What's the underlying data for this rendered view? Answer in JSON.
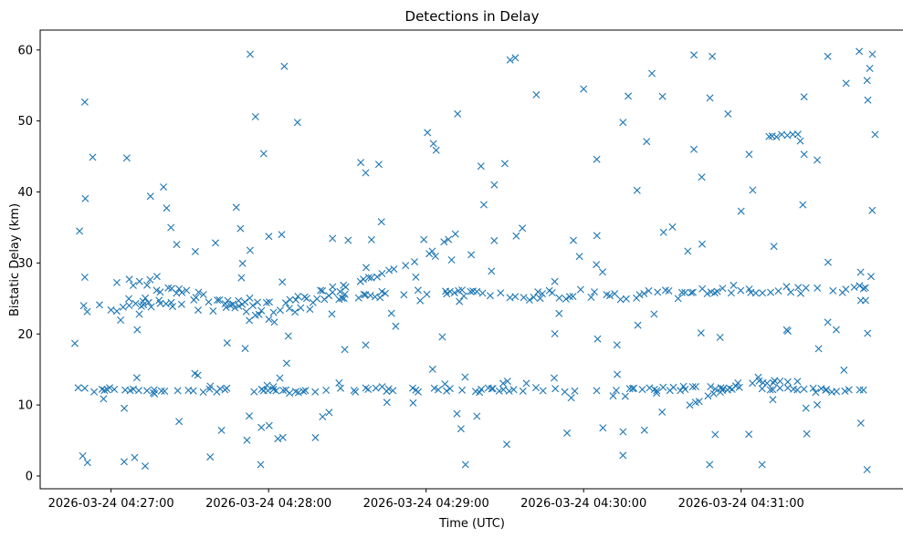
{
  "chart_data": {
    "type": "scatter",
    "title": "Detections in Delay",
    "xlabel": "Time (UTC)",
    "ylabel": "Bistatic Delay (km)",
    "x_start": "2026-03-24 04:26:46",
    "x_end": "2026-03-24 04:31:50",
    "xlim": [
      "2026-03-24 04:26:33",
      "2026-03-24 04:32:02"
    ],
    "ylim": [
      -1.8,
      62.8
    ],
    "x_ticks": [
      "2026-03-24 04:27:00",
      "2026-03-24 04:28:00",
      "2026-03-24 04:29:00",
      "2026-03-24 04:30:00",
      "2026-03-24 04:31:00"
    ],
    "y_ticks": [
      0,
      10,
      20,
      30,
      40,
      50,
      60
    ],
    "marker": "x",
    "color": "#1f77b4",
    "grid": false,
    "legend": "none",
    "band_tracks": [
      {
        "points": [
          [
            "2026-03-24 04:26:47",
            12.2
          ],
          [
            "2026-03-24 04:27:50",
            12.0
          ],
          [
            "2026-03-24 04:29:00",
            12.2
          ],
          [
            "2026-03-24 04:30:00",
            12.0
          ],
          [
            "2026-03-24 04:30:40",
            12.4
          ],
          [
            "2026-03-24 04:31:50",
            12.1
          ]
        ],
        "spread": 0.5
      },
      {
        "points": [
          [
            "2026-03-24 04:26:47",
            23.6
          ],
          [
            "2026-03-24 04:27:20",
            24.0
          ],
          [
            "2026-03-24 04:28:00",
            24.5
          ],
          [
            "2026-03-24 04:28:30",
            25.5
          ],
          [
            "2026-03-24 04:29:00",
            25.8
          ],
          [
            "2026-03-24 04:29:30",
            25.6
          ],
          [
            "2026-03-24 04:30:30",
            25.8
          ],
          [
            "2026-03-24 04:31:00",
            26.0
          ],
          [
            "2026-03-24 04:31:50",
            26.2
          ]
        ],
        "spread": 1.2
      },
      {
        "points": [
          [
            "2026-03-24 04:27:00",
            27.5
          ],
          [
            "2026-03-24 04:27:30",
            26.0
          ],
          [
            "2026-03-24 04:28:00",
            22.5
          ],
          [
            "2026-03-24 04:28:30",
            25.0
          ]
        ],
        "spread": 1.0
      },
      {
        "points": [
          [
            "2026-03-24 04:28:20",
            26.0
          ],
          [
            "2026-03-24 04:28:40",
            28.0
          ],
          [
            "2026-03-24 04:29:00",
            31.0
          ],
          [
            "2026-03-24 04:29:13",
            34.5
          ]
        ],
        "spread": 0.3
      },
      {
        "points": [
          [
            "2026-03-24 04:30:40",
            10.0
          ],
          [
            "2026-03-24 04:31:00",
            13.0
          ],
          [
            "2026-03-24 04:31:25",
            13.5
          ]
        ],
        "spread": 0.4
      },
      {
        "points": [
          [
            "2026-03-24 04:31:10",
            47.8
          ],
          [
            "2026-03-24 04:31:23",
            48.2
          ]
        ],
        "spread": 0.2
      }
    ],
    "notes_points": [
      [
        "2026-03-24 04:26:48",
        34.5
      ],
      [
        "2026-03-24 04:26:50",
        28.0
      ],
      [
        "2026-03-24 04:26:53",
        44.9
      ],
      [
        "2026-03-24 04:27:06",
        44.8
      ],
      [
        "2026-03-24 04:27:15",
        39.4
      ],
      [
        "2026-03-24 04:27:20",
        40.7
      ],
      [
        "2026-03-24 04:27:53",
        59.4
      ],
      [
        "2026-03-24 04:27:55",
        50.6
      ],
      [
        "2026-03-24 04:28:06",
        57.7
      ],
      [
        "2026-03-24 04:28:11",
        49.8
      ],
      [
        "2026-03-24 04:28:37",
        42.7
      ],
      [
        "2026-03-24 04:28:42",
        43.9
      ],
      [
        "2026-03-24 04:29:12",
        51.0
      ],
      [
        "2026-03-24 04:29:30",
        44.0
      ],
      [
        "2026-03-24 04:29:32",
        58.6
      ],
      [
        "2026-03-24 04:29:34",
        58.9
      ],
      [
        "2026-03-24 04:29:42",
        53.7
      ],
      [
        "2026-03-24 04:30:00",
        54.5
      ],
      [
        "2026-03-24 04:30:15",
        49.8
      ],
      [
        "2026-03-24 04:30:17",
        53.5
      ],
      [
        "2026-03-24 04:30:26",
        56.7
      ],
      [
        "2026-03-24 04:30:42",
        59.3
      ],
      [
        "2026-03-24 04:30:49",
        59.1
      ],
      [
        "2026-03-24 04:30:55",
        51.0
      ],
      [
        "2026-03-24 04:31:24",
        53.4
      ],
      [
        "2026-03-24 04:31:33",
        59.1
      ],
      [
        "2026-03-24 04:31:40",
        55.3
      ],
      [
        "2026-03-24 04:31:45",
        59.8
      ],
      [
        "2026-03-24 04:31:48",
        55.7
      ],
      [
        "2026-03-24 04:31:49",
        57.4
      ],
      [
        "2026-03-24 04:31:50",
        59.4
      ],
      [
        "2026-03-24 04:31:51",
        48.1
      ],
      [
        "2026-03-24 04:26:51",
        1.9
      ],
      [
        "2026-03-24 04:27:05",
        2.0
      ],
      [
        "2026-03-24 04:27:13",
        1.4
      ],
      [
        "2026-03-24 04:27:57",
        1.6
      ],
      [
        "2026-03-24 04:29:15",
        1.6
      ],
      [
        "2026-03-24 04:30:15",
        2.9
      ],
      [
        "2026-03-24 04:30:48",
        1.6
      ],
      [
        "2026-03-24 04:31:08",
        1.6
      ],
      [
        "2026-03-24 04:31:48",
        0.9
      ],
      [
        "2026-03-24 04:27:25",
        32.6
      ],
      [
        "2026-03-24 04:28:05",
        34.0
      ],
      [
        "2026-03-24 04:28:43",
        35.8
      ],
      [
        "2026-03-24 04:29:22",
        38.2
      ],
      [
        "2026-03-24 04:29:26",
        41.0
      ],
      [
        "2026-03-24 04:30:05",
        44.6
      ],
      [
        "2026-03-24 04:30:24",
        47.1
      ],
      [
        "2026-03-24 04:30:42",
        46.0
      ],
      [
        "2026-03-24 04:30:45",
        42.1
      ],
      [
        "2026-03-24 04:31:00",
        37.3
      ],
      [
        "2026-03-24 04:31:03",
        45.3
      ],
      [
        "2026-03-24 04:31:24",
        45.3
      ],
      [
        "2026-03-24 04:31:29",
        44.5
      ]
    ]
  },
  "chart_notes": {
    "cluster_seed": 7,
    "scatter_count": 160
  }
}
